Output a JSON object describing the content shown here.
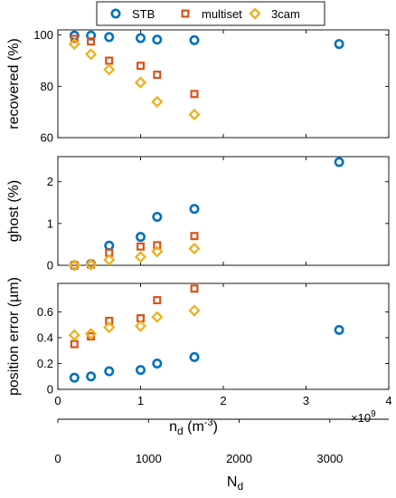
{
  "chart_data": {
    "type": "scatter",
    "legend": {
      "placement": "top",
      "entries": [
        {
          "label": "STB",
          "color": "#0072BD",
          "marker": "circle"
        },
        {
          "label": "multiset",
          "color": "#D95319",
          "marker": "square"
        },
        {
          "label": "3cam",
          "color": "#EDB120",
          "marker": "diamond"
        }
      ]
    },
    "x": {
      "label": "n",
      "label_subscript": "d",
      "unit_open": " (m",
      "unit_exponent": "-3",
      "unit_close": ")",
      "ticks": [
        "0",
        "1",
        "2",
        "3",
        "4"
      ],
      "tick_values": [
        0,
        1,
        2,
        3,
        4
      ],
      "range": [
        0,
        4
      ],
      "multiplier": "×10",
      "multiplier_exponent": "9"
    },
    "x2": {
      "label": "N",
      "label_subscript": "d",
      "ticks": [
        "0",
        "1000",
        "2000",
        "3000"
      ],
      "tick_values": [
        0,
        1000,
        2000,
        3000
      ],
      "range": [
        0,
        3650
      ]
    },
    "panels": [
      {
        "ylabel": "recovered (%)",
        "ylim": [
          60,
          102
        ],
        "yticks": [
          "60",
          "80",
          "100"
        ],
        "ytick_values": [
          60,
          80,
          100
        ],
        "series": [
          {
            "name": "STB",
            "x": [
              0.2,
              0.4,
              0.62,
              1.0,
              1.2,
              1.65,
              3.4
            ],
            "y": [
              99.8,
              99.8,
              99.2,
              98.8,
              98.2,
              98.0,
              96.5
            ]
          },
          {
            "name": "multiset",
            "x": [
              0.2,
              0.4,
              0.62,
              1.0,
              1.2,
              1.65
            ],
            "y": [
              98.5,
              97.5,
              90.0,
              88.0,
              84.5,
              77.0
            ]
          },
          {
            "name": "3cam",
            "x": [
              0.2,
              0.4,
              0.62,
              1.0,
              1.2,
              1.65
            ],
            "y": [
              96.5,
              92.5,
              86.5,
              81.5,
              74.0,
              69.0
            ]
          }
        ]
      },
      {
        "ylabel": "ghost (%)",
        "ylim": [
          0,
          2.6
        ],
        "yticks": [
          "0",
          "1",
          "2"
        ],
        "ytick_values": [
          0,
          1,
          2
        ],
        "series": [
          {
            "name": "STB",
            "x": [
              0.2,
              0.4,
              0.62,
              1.0,
              1.2,
              1.65,
              3.4
            ],
            "y": [
              0.0,
              0.03,
              0.47,
              0.68,
              1.16,
              1.35,
              2.47
            ]
          },
          {
            "name": "multiset",
            "x": [
              0.2,
              0.4,
              0.62,
              1.0,
              1.2,
              1.65
            ],
            "y": [
              0.0,
              0.02,
              0.3,
              0.45,
              0.48,
              0.7
            ]
          },
          {
            "name": "3cam",
            "x": [
              0.2,
              0.4,
              0.62,
              1.0,
              1.2,
              1.65
            ],
            "y": [
              0.0,
              0.02,
              0.13,
              0.2,
              0.33,
              0.4
            ]
          }
        ]
      },
      {
        "ylabel": "position error (µm)",
        "ylim": [
          0,
          0.82
        ],
        "yticks": [
          "0",
          "0.2",
          "0.4",
          "0.6"
        ],
        "ytick_values": [
          0,
          0.2,
          0.4,
          0.6
        ],
        "series": [
          {
            "name": "STB",
            "x": [
              0.2,
              0.4,
              0.62,
              1.0,
              1.2,
              1.65,
              3.4
            ],
            "y": [
              0.09,
              0.1,
              0.14,
              0.15,
              0.2,
              0.25,
              0.46
            ]
          },
          {
            "name": "multiset",
            "x": [
              0.2,
              0.4,
              0.62,
              1.0,
              1.2,
              1.65
            ],
            "y": [
              0.35,
              0.41,
              0.53,
              0.55,
              0.69,
              0.78
            ]
          },
          {
            "name": "3cam",
            "x": [
              0.2,
              0.4,
              0.62,
              1.0,
              1.2,
              1.65
            ],
            "y": [
              0.42,
              0.43,
              0.48,
              0.49,
              0.56,
              0.61
            ]
          }
        ]
      }
    ]
  }
}
